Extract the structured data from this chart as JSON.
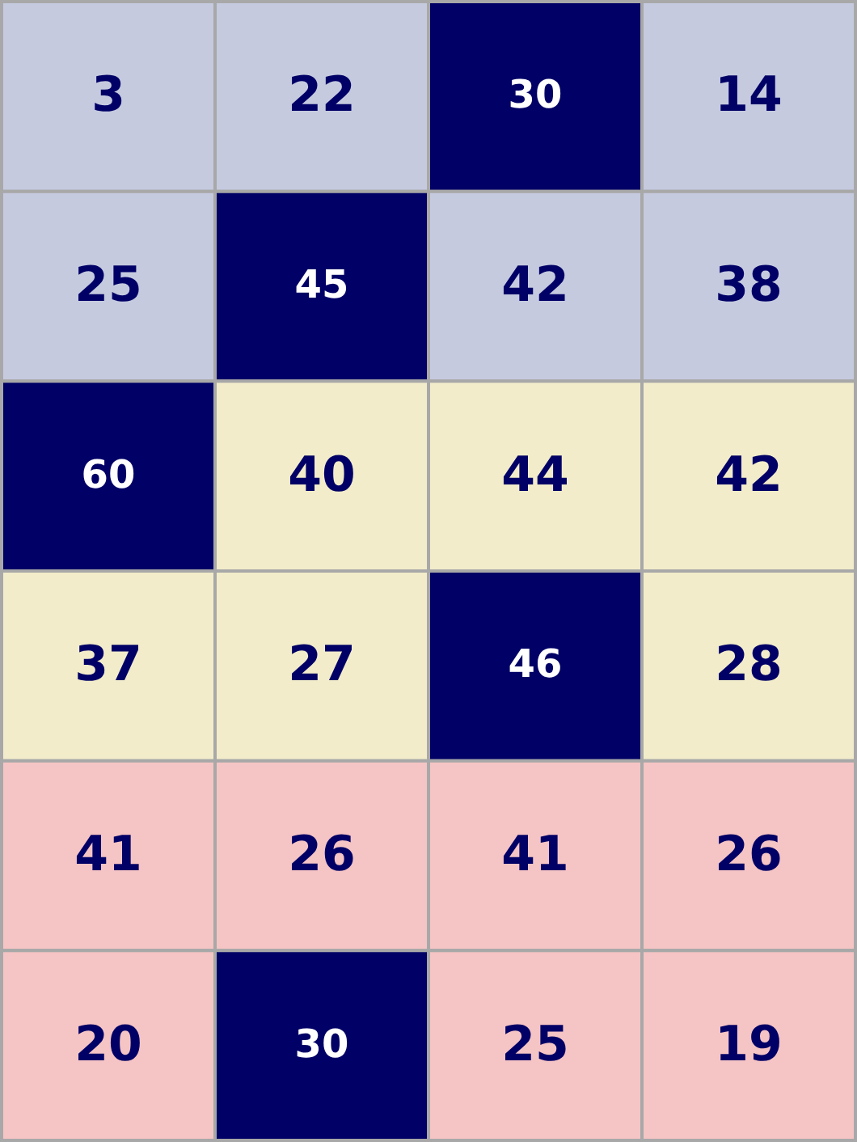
{
  "chart_data": {
    "type": "heatmap",
    "categories": [
      null,
      null,
      null,
      null
    ],
    "y_categories": [
      null,
      null,
      null,
      null,
      null,
      null
    ],
    "cells": [
      [
        3,
        22,
        30,
        14
      ],
      [
        25,
        45,
        42,
        38
      ],
      [
        60,
        40,
        44,
        42
      ],
      [
        37,
        27,
        46,
        28
      ],
      [
        41,
        26,
        41,
        26
      ],
      [
        20,
        30,
        25,
        19
      ]
    ],
    "colors": [
      "#c5cadf",
      "#c5cadf",
      "#000066",
      "#c5cadf",
      "#c5cadf",
      "#000066",
      "#c5cadf",
      "#c5cadf",
      "#000066",
      "#f2ecca",
      "#f2ecca",
      "#f2ecca",
      "#f2ecca",
      "#f2ecca",
      "#000066",
      "#f2ecca",
      "#f5c4c4",
      "#f5c4c4",
      "#f5c4c4",
      "#f5c4c4",
      "#f5c4c4",
      "#000066",
      "#f5c4c4",
      "#f5c4c4"
    ],
    "data_labels": true
  }
}
